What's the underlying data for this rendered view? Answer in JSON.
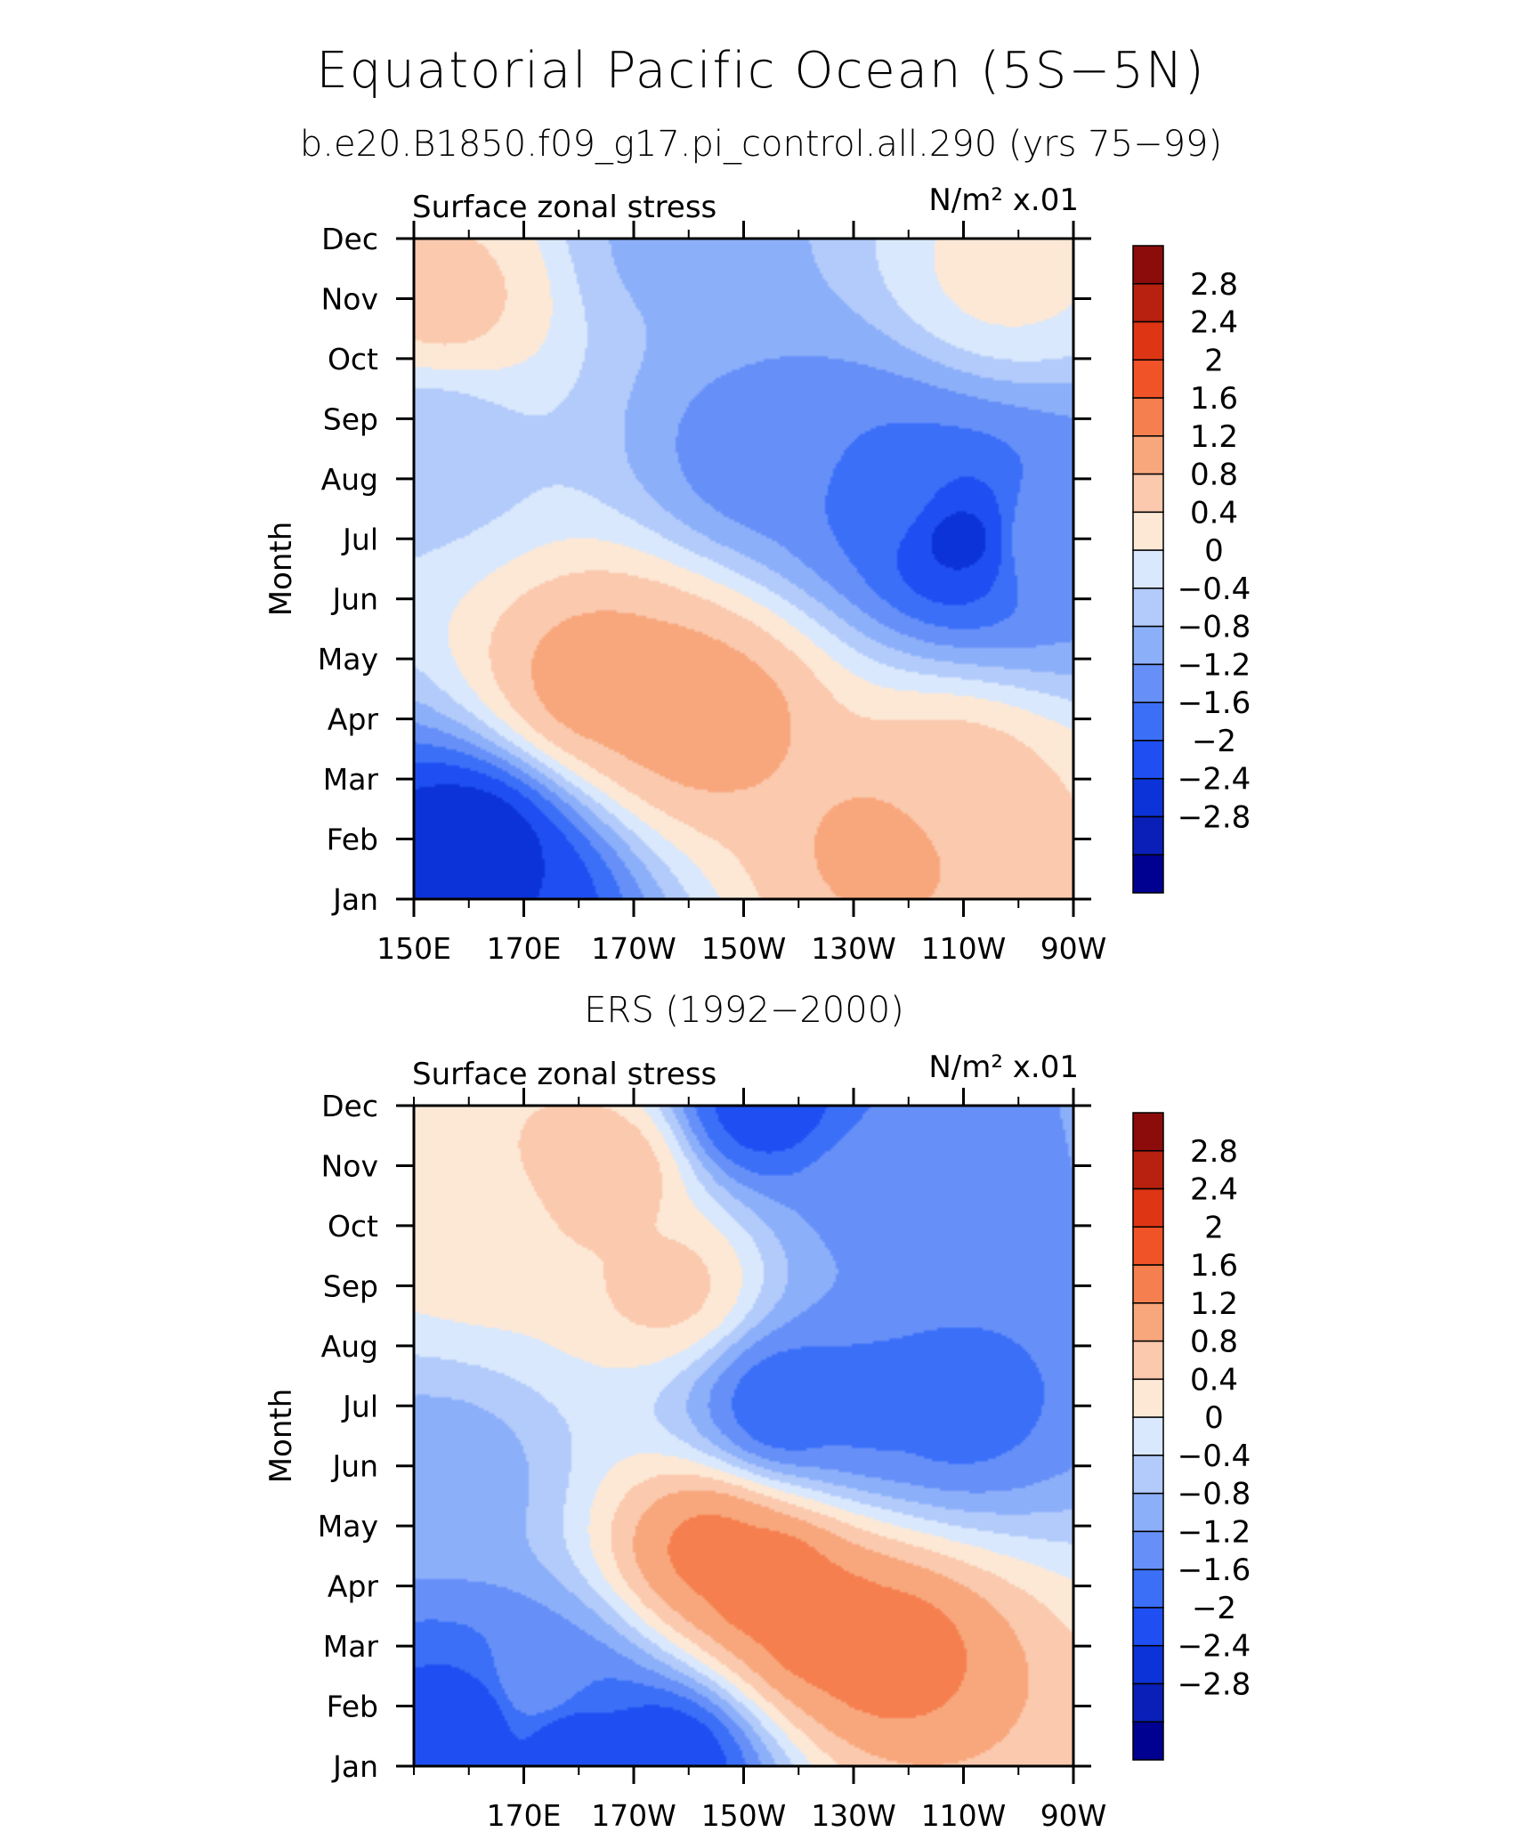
{
  "title": "Equatorial Pacific Ocean (5S−5N)",
  "subtitle": "b.e20.B1850.f09_g17.pi_control.all.290 (yrs 75−99)",
  "chart_data": [
    {
      "type": "heatmap",
      "panel_title": "",
      "left_label": "Surface zonal stress",
      "units_label": "N/m² x.01",
      "ylabel": "Month",
      "x_tick_labels": [
        "150E",
        "170E",
        "170W",
        "150W",
        "130W",
        "110W",
        "90W"
      ],
      "x_ticks_lon": [
        150,
        170,
        190,
        210,
        230,
        250,
        270
      ],
      "xlim": [
        150,
        270
      ],
      "y_tick_labels": [
        "Jan",
        "Feb",
        "Mar",
        "Apr",
        "May",
        "Jun",
        "Jul",
        "Aug",
        "Sep",
        "Oct",
        "Nov",
        "Dec"
      ],
      "contour_levels": [
        -2.8,
        -2.4,
        -2,
        -1.6,
        -1.2,
        -0.8,
        -0.4,
        0,
        0.4,
        0.8,
        1.2,
        1.6,
        2,
        2.4,
        2.8
      ],
      "colorbar_labels": [
        "2.8",
        "2.4",
        "2",
        "1.6",
        "1.2",
        "0.8",
        "0.4",
        "0",
        "−0.4",
        "−0.8",
        "−1.2",
        "−1.6",
        "−2",
        "−2.4",
        "−2.8"
      ],
      "features": [
        {
          "lon": 160,
          "month": 1.8,
          "value": -2.4
        },
        {
          "lon": 166,
          "month": 1.0,
          "value": -2.0
        },
        {
          "lon": 184,
          "month": 4.6,
          "value": 1.4
        },
        {
          "lon": 196,
          "month": 4.3,
          "value": 1.4
        },
        {
          "lon": 204,
          "month": 4.0,
          "value": 1.4
        },
        {
          "lon": 250,
          "month": 7.0,
          "value": -2.1
        },
        {
          "lon": 235,
          "month": 7.8,
          "value": -1.3
        },
        {
          "lon": 214,
          "month": 8.4,
          "value": -1.0
        },
        {
          "lon": 248,
          "month": 2.8,
          "value": 1.0
        },
        {
          "lon": 236,
          "month": 1.9,
          "value": 1.3
        },
        {
          "lon": 155,
          "month": 11.0,
          "value": 0.9
        },
        {
          "lon": 200,
          "month": 12.0,
          "value": -0.5
        },
        {
          "lon": 152,
          "month": 8.6,
          "value": -0.2
        },
        {
          "lon": 266,
          "month": 7.0,
          "value": -0.8
        },
        {
          "lon": 258,
          "month": 11.5,
          "value": 0.5
        }
      ]
    },
    {
      "type": "heatmap",
      "panel_title": "ERS (1992−2000)",
      "left_label": "Surface zonal stress",
      "units_label": "N/m² x.01",
      "ylabel": "Month",
      "x_tick_labels": [
        "170E",
        "170W",
        "150W",
        "130W",
        "110W",
        "90W"
      ],
      "x_ticks_lon": [
        170,
        190,
        210,
        230,
        250,
        270
      ],
      "xlim": [
        150,
        270
      ],
      "y_tick_labels": [
        "Jan",
        "Feb",
        "Mar",
        "Apr",
        "May",
        "Jun",
        "Jul",
        "Aug",
        "Sep",
        "Oct",
        "Nov",
        "Dec"
      ],
      "contour_levels": [
        -2.8,
        -2.4,
        -2,
        -1.6,
        -1.2,
        -0.8,
        -0.4,
        0,
        0.4,
        0.8,
        1.2,
        1.6,
        2,
        2.4,
        2.8
      ],
      "colorbar_labels": [
        "2.8",
        "2.4",
        "2",
        "1.6",
        "1.2",
        "0.8",
        "0.4",
        "0",
        "−0.4",
        "−0.8",
        "−1.2",
        "−1.6",
        "−2",
        "−2.4",
        "−2.8"
      ],
      "features": [
        {
          "lon": 160,
          "month": 1.8,
          "value": -1.9
        },
        {
          "lon": 178,
          "month": 1.4,
          "value": -1.8
        },
        {
          "lon": 195,
          "month": 1.1,
          "value": -2.0
        },
        {
          "lon": 172,
          "month": 2.3,
          "value": -0.9
        },
        {
          "lon": 204,
          "month": 4.6,
          "value": 1.7
        },
        {
          "lon": 214,
          "month": 4.1,
          "value": 1.9
        },
        {
          "lon": 224,
          "month": 3.3,
          "value": 1.8
        },
        {
          "lon": 236,
          "month": 2.9,
          "value": 1.8
        },
        {
          "lon": 218,
          "month": 7.0,
          "value": -1.5
        },
        {
          "lon": 233,
          "month": 7.0,
          "value": -1.3
        },
        {
          "lon": 248,
          "month": 7.0,
          "value": -1.4
        },
        {
          "lon": 214,
          "month": 12.0,
          "value": -1.8
        },
        {
          "lon": 235,
          "month": 10.5,
          "value": -0.9
        },
        {
          "lon": 184,
          "month": 10.9,
          "value": 1.1
        },
        {
          "lon": 162,
          "month": 10.0,
          "value": 0.6
        },
        {
          "lon": 196,
          "month": 9.0,
          "value": 0.9
        },
        {
          "lon": 155,
          "month": 5.8,
          "value": -0.6
        },
        {
          "lon": 156,
          "month": 11.8,
          "value": 0.8
        }
      ]
    }
  ],
  "colorbar_colors": [
    "#000091",
    "#0a1fb8",
    "#0c33d8",
    "#1f4ff2",
    "#3b6ff8",
    "#6690f8",
    "#8caffa",
    "#b3cbfb",
    "#d9e8fd",
    "#fde8d6",
    "#fbc9ad",
    "#f8a77d",
    "#f57f4e",
    "#f15328",
    "#de3514",
    "#b82010",
    "#8c0b0b"
  ]
}
